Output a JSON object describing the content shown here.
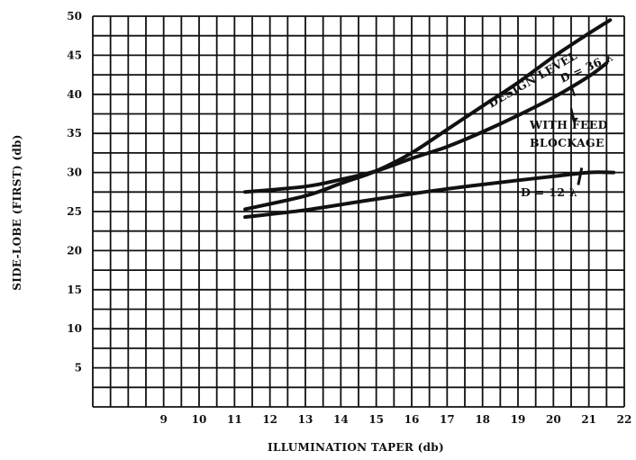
{
  "chart_data": {
    "type": "line",
    "title": "",
    "xlabel": "ILLUMINATION TAPER (db)",
    "ylabel": "SIDE-LOBE (FIRST) (db)",
    "xlim": [
      7,
      22
    ],
    "ylim": [
      0,
      50
    ],
    "x_ticks": [
      "9",
      "10",
      "11",
      "12",
      "13",
      "14",
      "15",
      "16",
      "17",
      "18",
      "19",
      "20",
      "21",
      "22"
    ],
    "y_ticks": [
      "5",
      "10",
      "15",
      "20",
      "25",
      "30",
      "35",
      "40",
      "45",
      "50"
    ],
    "grid": true,
    "legend": "none",
    "series": [
      {
        "name": "DESIGN LEVEL",
        "x": [
          11.3,
          13,
          14,
          15,
          16,
          17,
          18,
          19,
          20,
          21,
          21.6
        ],
        "y": [
          25.3,
          27,
          28.6,
          30.2,
          32.5,
          35.5,
          38.5,
          41.5,
          44.8,
          47.8,
          49.5
        ]
      },
      {
        "name": "D = 36 λ",
        "x": [
          11.3,
          13,
          14,
          15,
          16,
          17,
          18,
          19,
          20,
          21,
          21.5
        ],
        "y": [
          27.5,
          28.2,
          29.1,
          30.2,
          31.8,
          33.3,
          35.2,
          37.3,
          39.6,
          42.3,
          44
        ]
      },
      {
        "name": "D = 12 λ",
        "x": [
          11.3,
          13,
          15,
          17,
          19,
          20,
          21,
          21.7
        ],
        "y": [
          24.3,
          25.2,
          26.6,
          27.9,
          29,
          29.5,
          30,
          30
        ]
      }
    ],
    "annotations": [
      "DESIGN LEVEL",
      "D = 36 λ",
      "WITH FEED",
      "BLOCKAGE",
      "D = 12 λ"
    ]
  }
}
